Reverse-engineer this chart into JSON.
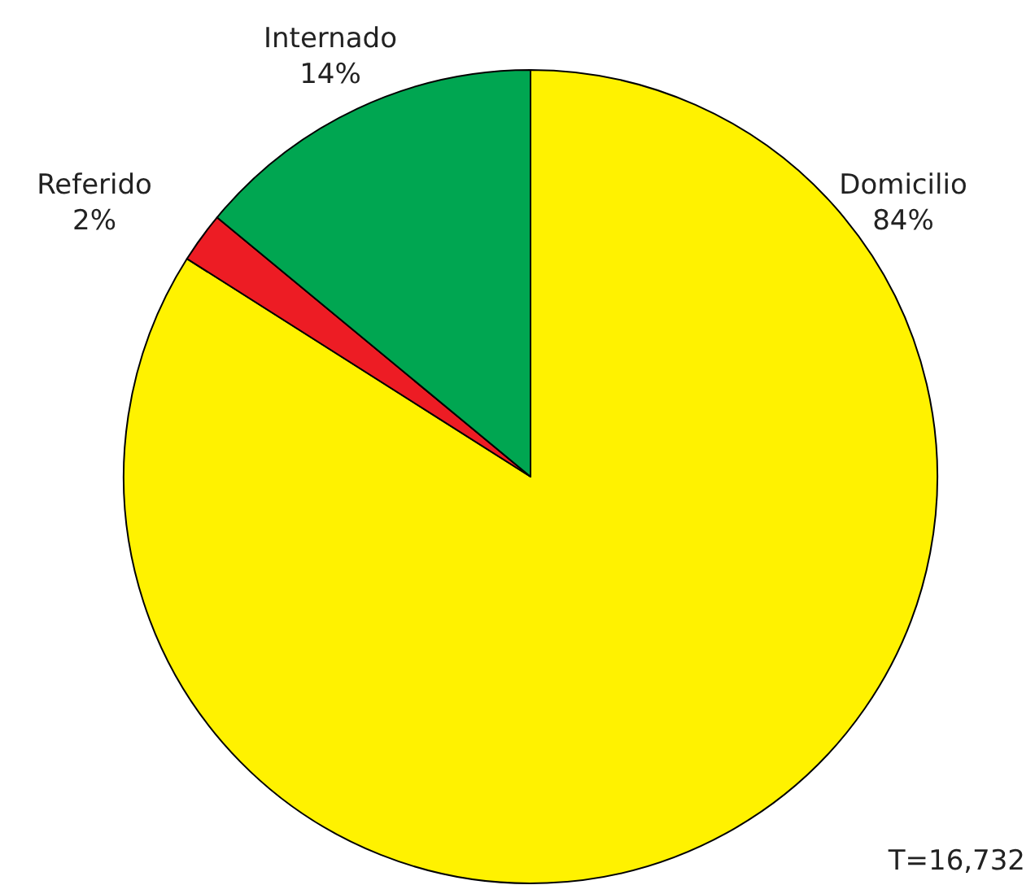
{
  "chart_data": {
    "type": "pie",
    "categories": [
      "Domicilio",
      "Referido",
      "Internado"
    ],
    "values": [
      84,
      2,
      14
    ],
    "value_labels": [
      "84%",
      "2%",
      "14%"
    ],
    "colors": [
      "#fff200",
      "#ed1c24",
      "#00a651"
    ],
    "annotations": [
      "T=16,732"
    ],
    "legend": false
  }
}
